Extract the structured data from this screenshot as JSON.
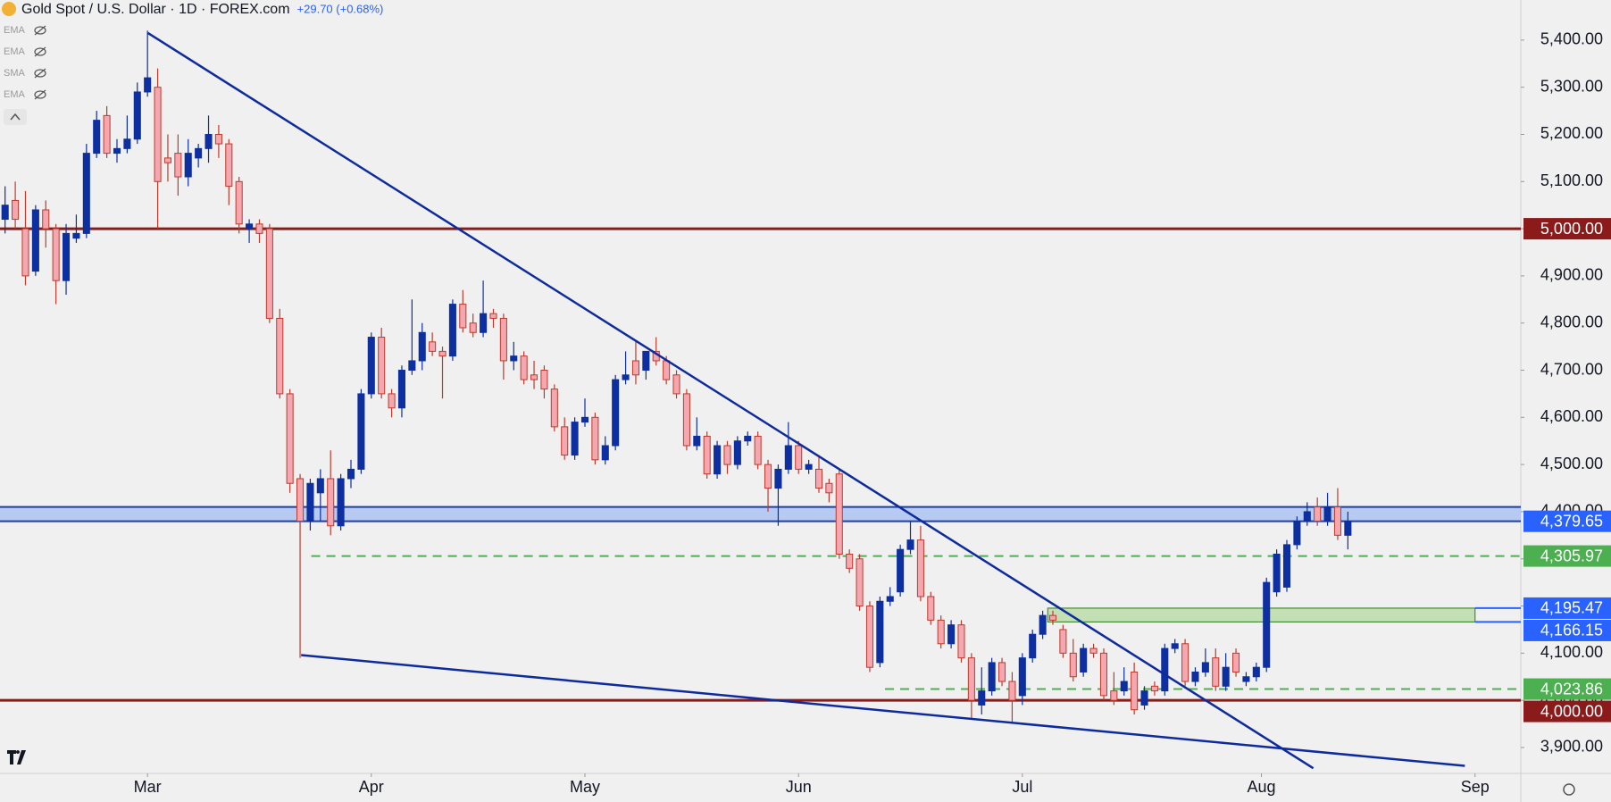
{
  "chart_data": {
    "type": "candlestick",
    "title": "Gold Spot / U.S. Dollar · 1D · FOREX.com",
    "change": "+29.70 (+0.68%)",
    "indicators": [
      "EMA",
      "EMA",
      "SMA",
      "EMA"
    ],
    "bull_color": "#0d2fa0",
    "bear_color": "#f4a7ae",
    "bear_edge": "#c0392b",
    "candles": {
      "open": [
        5020,
        5060,
        5000,
        4910,
        5040,
        5000,
        4890,
        4980,
        4990,
        5160,
        5240,
        5160,
        5170,
        5190,
        5290,
        5300,
        5150,
        5160,
        5110,
        5150,
        5170,
        5200,
        5180,
        5100,
        5000,
        5010,
        5000,
        4810,
        4650,
        4470,
        4380,
        4440,
        4470,
        4370,
        4470,
        4490,
        4650,
        4770,
        4650,
        4620,
        4700,
        4720,
        4760,
        4740,
        4730,
        4840,
        4800,
        4780,
        4820,
        4810,
        4720,
        4730,
        4690,
        4700,
        4660,
        4580,
        4520,
        4590,
        4600,
        4510,
        4540,
        4680,
        4720,
        4700,
        4740,
        4720,
        4690,
        4650,
        4540,
        4560,
        4480,
        4540,
        4500,
        4550,
        4560,
        4500,
        4450,
        4490,
        4540,
        4490,
        4490,
        4460,
        4480,
        4310,
        4300,
        4200,
        4080,
        4210,
        4230,
        4320,
        4340,
        4220,
        4170,
        4120,
        4160,
        4090,
        3990,
        4020,
        4080,
        4040,
        4010,
        4090,
        4140,
        4180,
        4150,
        4100,
        4060,
        4110,
        4100,
        4020,
        4020,
        4060,
        3990,
        4030,
        4020,
        4110,
        4120,
        4040,
        4060,
        4090,
        4030,
        4100,
        4040,
        4050,
        4070,
        4230,
        4240,
        4330,
        4380,
        4410,
        4380,
        4410,
        4350
      ],
      "high": [
        5090,
        5100,
        5080,
        5050,
        5060,
        5010,
        5010,
        5030,
        5180,
        5250,
        5260,
        5190,
        5240,
        5310,
        5420,
        5340,
        5200,
        5200,
        5190,
        5180,
        5240,
        5220,
        5190,
        5110,
        5020,
        5020,
        5010,
        4830,
        4660,
        4480,
        4470,
        4490,
        4530,
        4480,
        4510,
        4660,
        4780,
        4790,
        4660,
        4710,
        4850,
        4800,
        4780,
        4750,
        4850,
        4870,
        4820,
        4890,
        4830,
        4820,
        4760,
        4740,
        4720,
        4710,
        4670,
        4600,
        4600,
        4640,
        4610,
        4560,
        4690,
        4740,
        4760,
        4740,
        4770,
        4730,
        4700,
        4660,
        4600,
        4570,
        4550,
        4550,
        4560,
        4570,
        4570,
        4510,
        4500,
        4590,
        4550,
        4510,
        4520,
        4470,
        4490,
        4320,
        4310,
        4210,
        4220,
        4240,
        4330,
        4380,
        4370,
        4230,
        4180,
        4170,
        4170,
        4100,
        4070,
        4090,
        4090,
        4060,
        4100,
        4150,
        4190,
        4190,
        4160,
        4130,
        4120,
        4120,
        4110,
        4060,
        4070,
        4080,
        4030,
        4040,
        4120,
        4130,
        4130,
        4070,
        4110,
        4110,
        4100,
        4110,
        4060,
        4080,
        4260,
        4320,
        4340,
        4390,
        4420,
        4430,
        4440,
        4450,
        4400
      ],
      "low": [
        4990,
        5000,
        4880,
        4900,
        4960,
        4840,
        4860,
        4970,
        4980,
        5150,
        5150,
        5140,
        5160,
        5180,
        5280,
        5000,
        5100,
        5070,
        5090,
        5130,
        5140,
        5150,
        5050,
        4990,
        4970,
        4970,
        4800,
        4640,
        4440,
        4090,
        4360,
        4380,
        4350,
        4360,
        4450,
        4480,
        4640,
        4640,
        4600,
        4600,
        4690,
        4700,
        4730,
        4640,
        4720,
        4780,
        4770,
        4770,
        4790,
        4680,
        4700,
        4670,
        4660,
        4640,
        4570,
        4510,
        4510,
        4580,
        4500,
        4500,
        4530,
        4670,
        4670,
        4680,
        4710,
        4670,
        4640,
        4530,
        4530,
        4470,
        4470,
        4480,
        4490,
        4540,
        4490,
        4400,
        4370,
        4480,
        4480,
        4480,
        4440,
        4420,
        4300,
        4270,
        4190,
        4060,
        4070,
        4200,
        4220,
        4310,
        4210,
        4160,
        4110,
        4110,
        4080,
        3960,
        3970,
        4010,
        4030,
        3950,
        3990,
        4080,
        4130,
        4160,
        4090,
        4040,
        4050,
        4090,
        4000,
        3990,
        4010,
        3970,
        3980,
        4010,
        4010,
        4100,
        4030,
        4030,
        4050,
        4020,
        4020,
        4050,
        4030,
        4040,
        4060,
        4220,
        4230,
        4320,
        4370,
        4370,
        4370,
        4340,
        4320
      ],
      "close": [
        5050,
        5020,
        4900,
        5040,
        5000,
        4890,
        4990,
        4990,
        5160,
        5230,
        5160,
        5170,
        5190,
        5290,
        5320,
        5100,
        5140,
        5110,
        5160,
        5170,
        5200,
        5180,
        5090,
        5010,
        5010,
        4990,
        4810,
        4650,
        4460,
        4380,
        4460,
        4470,
        4370,
        4470,
        4490,
        4650,
        4770,
        4650,
        4620,
        4700,
        4720,
        4780,
        4740,
        4730,
        4840,
        4790,
        4780,
        4820,
        4810,
        4720,
        4730,
        4680,
        4680,
        4660,
        4580,
        4520,
        4590,
        4600,
        4510,
        4540,
        4680,
        4690,
        4690,
        4740,
        4720,
        4680,
        4650,
        4540,
        4560,
        4480,
        4540,
        4500,
        4550,
        4560,
        4500,
        4450,
        4490,
        4540,
        4490,
        4500,
        4450,
        4440,
        4310,
        4280,
        4200,
        4070,
        4210,
        4220,
        4320,
        4340,
        4220,
        4170,
        4120,
        4160,
        4090,
        4000,
        4020,
        4080,
        4040,
        4000,
        4090,
        4140,
        4180,
        4170,
        4100,
        4050,
        4110,
        4100,
        4010,
        4000,
        4040,
        3980,
        4020,
        4020,
        4110,
        4120,
        4040,
        4060,
        4080,
        4030,
        4070,
        4060,
        4050,
        4070,
        4250,
        4310,
        4330,
        4380,
        4400,
        4380,
        4410,
        4350,
        4380
      ]
    },
    "xlim": [
      -0.5,
      149
    ],
    "xticks": [
      {
        "value": 14,
        "label": "Mar"
      },
      {
        "value": 36,
        "label": "Apr"
      },
      {
        "value": 57,
        "label": "May"
      },
      {
        "value": 78,
        "label": "Jun"
      },
      {
        "value": 100,
        "label": "Jul"
      },
      {
        "value": 123.5,
        "label": "Aug"
      },
      {
        "value": 144.5,
        "label": "Sep"
      }
    ],
    "ylim": [
      3845,
      5485
    ],
    "yticks": [
      {
        "value": 3900,
        "label": "3,900.00"
      },
      {
        "value": 4000,
        "label": "4,000.00"
      },
      {
        "value": 4100,
        "label": "4,100.00"
      },
      {
        "value": 4200,
        "label": "4,200.00"
      },
      {
        "value": 4300,
        "label": "4,300.00"
      },
      {
        "value": 4400,
        "label": "4,400.00"
      },
      {
        "value": 4500,
        "label": "4,500.00"
      },
      {
        "value": 4600,
        "label": "4,600.00"
      },
      {
        "value": 4700,
        "label": "4,700.00"
      },
      {
        "value": 4800,
        "label": "4,800.00"
      },
      {
        "value": 4900,
        "label": "4,900.00"
      },
      {
        "value": 5000,
        "label": "5,000.00"
      },
      {
        "value": 5100,
        "label": "5,100.00"
      },
      {
        "value": 5200,
        "label": "5,200.00"
      },
      {
        "value": 5300,
        "label": "5,300.00"
      },
      {
        "value": 5400,
        "label": "5,400.00"
      }
    ],
    "zone": {
      "low": 4379.65,
      "high": 4410,
      "label": "4,379.65",
      "color": "#2962ff"
    },
    "box": {
      "low": 4166.15,
      "high": 4195.47,
      "low_label": "4,166.15",
      "high_label": "4,195.47",
      "x": [
        102.5,
        144.5
      ],
      "color": "#2962ff"
    },
    "dashed": [
      {
        "value": 4305.97,
        "label": "4,305.97",
        "x": 30.1
      },
      {
        "value": 4023.86,
        "label": "4,023.86",
        "x": 86.5
      }
    ],
    "dashed_color": "#4caf50",
    "levels": [
      {
        "value": 5000,
        "label": "5,000.00",
        "color": "#8b1a1a"
      },
      {
        "value": 4000,
        "label": "4,000.00",
        "color": "#8b1a1a"
      }
    ],
    "trendlines": [
      {
        "x": [
          14.04,
          128.6
        ],
        "y": [
          5415,
          3856
        ],
        "color": "#0d2b9e"
      },
      {
        "x": [
          29.1,
          143.5
        ],
        "y": [
          4096,
          3861
        ],
        "color": "#0d2b9e"
      }
    ]
  }
}
